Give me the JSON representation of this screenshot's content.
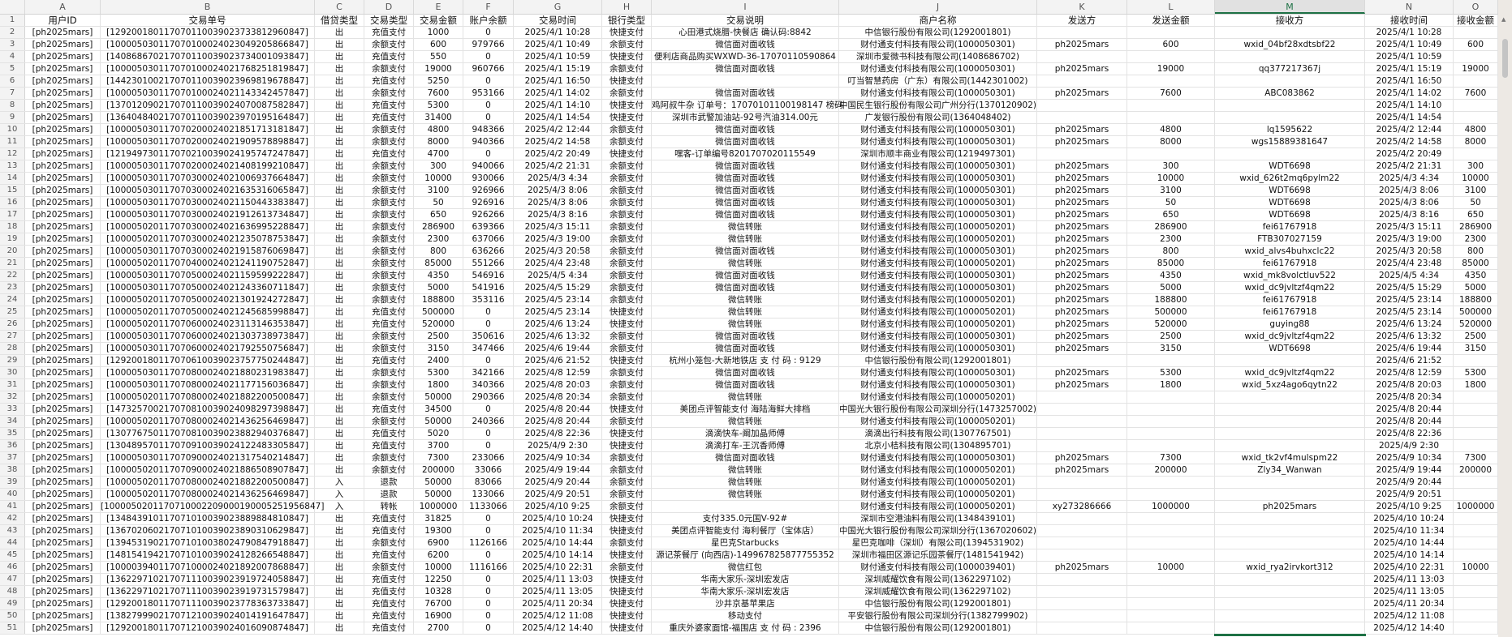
{
  "columns": [
    "",
    "A",
    "B",
    "C",
    "D",
    "E",
    "F",
    "G",
    "H",
    "I",
    "J",
    "K",
    "L",
    "M",
    "N",
    "O"
  ],
  "selected_column": "M",
  "headers": [
    "用户ID",
    "交易单号",
    "借贷类型",
    "交易类型",
    "交易金额",
    "账户余额",
    "交易时间",
    "银行类型",
    "交易说明",
    "商户名称",
    "发送方",
    "发送金额",
    "接收方",
    "接收时间",
    "接收金额"
  ],
  "rows": [
    [
      "[ph2025mars]",
      "[129200180117070110039023733812960847]",
      "出",
      "充值支付",
      "1000",
      "0",
      "2025/4/1 10:28",
      "快捷支付",
      "心田港式烧腊-快餐店 确认码:8842",
      "中信银行股份有限公司(1292001801)",
      "",
      "",
      "",
      "2025/4/1 10:28",
      ""
    ],
    [
      "[ph2025mars]",
      "[100005030117070100024023049205866847]",
      "出",
      "余额支付",
      "600",
      "979766",
      "2025/4/1 10:49",
      "余额支付",
      "微信面对面收钱",
      "财付通支付科技有限公司(1000050301)",
      "ph2025mars",
      "600",
      "wxid_04bf28xdtsbf22",
      "2025/4/1 10:49",
      "600"
    ],
    [
      "[ph2025mars]",
      "[140868670217070110039023734001093847]",
      "出",
      "充值支付",
      "550",
      "0",
      "2025/4/1 10:59",
      "快捷支付",
      "便利店商品购买WXWD-36-17070110590864",
      "深圳市爱微书科技有限公司(1408686702)",
      "",
      "",
      "",
      "2025/4/1 10:59",
      ""
    ],
    [
      "[ph2025mars]",
      "[100005030117070100024021768251819847]",
      "出",
      "余额支付",
      "19000",
      "960766",
      "2025/4/1 15:19",
      "余额支付",
      "微信面对面收钱",
      "财付通支付科技有限公司(1000050301)",
      "ph2025mars",
      "19000",
      "qq377217367j",
      "2025/4/1 15:19",
      "19000"
    ],
    [
      "[ph2025mars]",
      "[144230100217070110039023969819678847]",
      "出",
      "充值支付",
      "5250",
      "0",
      "2025/4/1 16:50",
      "快捷支付",
      "",
      "叮当智慧药房（广东）有限公司(1442301002)",
      "",
      "",
      "",
      "2025/4/1 16:50",
      ""
    ],
    [
      "[ph2025mars]",
      "[100005030117070100024021143342457847]",
      "出",
      "余额支付",
      "7600",
      "953166",
      "2025/4/1 14:02",
      "余额支付",
      "微信面对面收钱",
      "财付通支付科技有限公司(1000050301)",
      "ph2025mars",
      "7600",
      "ABC083862",
      "2025/4/1 14:02",
      "7600"
    ],
    [
      "[ph2025mars]",
      "[137012090217070110039024070087582847]",
      "出",
      "充值支付",
      "5300",
      "0",
      "2025/4/1 14:10",
      "快捷支付",
      "鸡阿叔牛杂 订单号：17070101100198147 榜码",
      "中国民生银行股份有限公司广州分行(1370120902)",
      "",
      "",
      "",
      "2025/4/1 14:10",
      ""
    ],
    [
      "[ph2025mars]",
      "[136404840217070110039023970195164847]",
      "出",
      "充值支付",
      "31400",
      "0",
      "2025/4/1 14:54",
      "快捷支付",
      "深圳市武警加油站-92号汽油314.00元",
      "广发银行股份有限公司(1364048402)",
      "",
      "",
      "",
      "2025/4/1 14:54",
      ""
    ],
    [
      "[ph2025mars]",
      "[100005030117070200024021851713181847]",
      "出",
      "余额支付",
      "4800",
      "948366",
      "2025/4/2 12:44",
      "余额支付",
      "微信面对面收钱",
      "财付通支付科技有限公司(1000050301)",
      "ph2025mars",
      "4800",
      "lq1595622",
      "2025/4/2 12:44",
      "4800"
    ],
    [
      "[ph2025mars]",
      "[100005030117070200024021909578898847]",
      "出",
      "余额支付",
      "8000",
      "940366",
      "2025/4/2 14:58",
      "余额支付",
      "微信面对面收钱",
      "财付通支付科技有限公司(1000050301)",
      "ph2025mars",
      "8000",
      "wgs15889381647",
      "2025/4/2 14:58",
      "8000"
    ],
    [
      "[ph2025mars]",
      "[121949730117070210039024195747247847]",
      "出",
      "充值支付",
      "4700",
      "0",
      "2025/4/2 20:49",
      "快捷支付",
      "嘿客-订单编号8201707020115549",
      "深圳市顺丰商业有限公司(1219497301)",
      "",
      "",
      "",
      "2025/4/2 20:49",
      ""
    ],
    [
      "[ph2025mars]",
      "[100005030117070200024021408199210847]",
      "出",
      "余额支付",
      "300",
      "940066",
      "2025/4/2 21:31",
      "余额支付",
      "微信面对面收钱",
      "财付通支付科技有限公司(1000050301)",
      "ph2025mars",
      "300",
      "WDT6698",
      "2025/4/2 21:31",
      "300"
    ],
    [
      "[ph2025mars]",
      "[100005030117070300024021006937664847]",
      "出",
      "余额支付",
      "10000",
      "930066",
      "2025/4/3 4:34",
      "余额支付",
      "微信面对面收钱",
      "财付通支付科技有限公司(1000050301)",
      "ph2025mars",
      "10000",
      "wxid_626t2mq6pylm22",
      "2025/4/3 4:34",
      "10000"
    ],
    [
      "[ph2025mars]",
      "[100005030117070300024021635316065847]",
      "出",
      "余额支付",
      "3100",
      "926966",
      "2025/4/3 8:06",
      "余额支付",
      "微信面对面收钱",
      "财付通支付科技有限公司(1000050301)",
      "ph2025mars",
      "3100",
      "WDT6698",
      "2025/4/3 8:06",
      "3100"
    ],
    [
      "[ph2025mars]",
      "[100005030117070300024021150443383847]",
      "出",
      "余额支付",
      "50",
      "926916",
      "2025/4/3 8:06",
      "余额支付",
      "微信面对面收钱",
      "财付通支付科技有限公司(1000050301)",
      "ph2025mars",
      "50",
      "WDT6698",
      "2025/4/3 8:06",
      "50"
    ],
    [
      "[ph2025mars]",
      "[100005030117070300024021912613734847]",
      "出",
      "余额支付",
      "650",
      "926266",
      "2025/4/3 8:16",
      "余额支付",
      "微信面对面收钱",
      "财付通支付科技有限公司(1000050301)",
      "ph2025mars",
      "650",
      "WDT6698",
      "2025/4/3 8:16",
      "650"
    ],
    [
      "[ph2025mars]",
      "[100005020117070300024021636995228847]",
      "出",
      "余额支付",
      "286900",
      "639366",
      "2025/4/3 15:11",
      "余额支付",
      "微信转账",
      "财付通支付科技有限公司(1000050201)",
      "ph2025mars",
      "286900",
      "fei61767918",
      "2025/4/3 15:11",
      "286900"
    ],
    [
      "[ph2025mars]",
      "[100005020117070300024021235078753847]",
      "出",
      "余额支付",
      "2300",
      "637066",
      "2025/4/3 19:00",
      "余额支付",
      "微信转账",
      "财付通支付科技有限公司(1000050201)",
      "ph2025mars",
      "2300",
      "FTB307027159",
      "2025/4/3 19:00",
      "2300"
    ],
    [
      "[ph2025mars]",
      "[100005030117070300024021915876069847]",
      "出",
      "余额支付",
      "800",
      "636266",
      "2025/4/3 20:58",
      "余额支付",
      "微信面对面收钱",
      "财付通支付科技有限公司(1000050301)",
      "ph2025mars",
      "800",
      "wxid_alvs4buhxclc22",
      "2025/4/3 20:58",
      "800"
    ],
    [
      "[ph2025mars]",
      "[100005020117070400024021241190752847]",
      "出",
      "余额支付",
      "85000",
      "551266",
      "2025/4/4 23:48",
      "余额支付",
      "微信转账",
      "财付通支付科技有限公司(1000050201)",
      "ph2025mars",
      "85000",
      "fei61767918",
      "2025/4/4 23:48",
      "85000"
    ],
    [
      "[ph2025mars]",
      "[100005030117070500024021159599222847]",
      "出",
      "余额支付",
      "4350",
      "546916",
      "2025/4/5 4:34",
      "余额支付",
      "微信面对面收钱",
      "财付通支付科技有限公司(1000050301)",
      "ph2025mars",
      "4350",
      "wxid_mk8volctluv522",
      "2025/4/5 4:34",
      "4350"
    ],
    [
      "[ph2025mars]",
      "[100005030117070500024021243360711847]",
      "出",
      "余额支付",
      "5000",
      "541916",
      "2025/4/5 15:29",
      "余额支付",
      "微信面对面收钱",
      "财付通支付科技有限公司(1000050301)",
      "ph2025mars",
      "5000",
      "wxid_dc9jvltzf4qm22",
      "2025/4/5 15:29",
      "5000"
    ],
    [
      "[ph2025mars]",
      "[100005020117070500024021301924272847]",
      "出",
      "余额支付",
      "188800",
      "353116",
      "2025/4/5 23:14",
      "余额支付",
      "微信转账",
      "财付通支付科技有限公司(1000050201)",
      "ph2025mars",
      "188800",
      "fei61767918",
      "2025/4/5 23:14",
      "188800"
    ],
    [
      "[ph2025mars]",
      "[100005020117070500024021245685998847]",
      "出",
      "充值支付",
      "500000",
      "0",
      "2025/4/5 23:14",
      "快捷支付",
      "微信转账",
      "财付通支付科技有限公司(1000050201)",
      "ph2025mars",
      "500000",
      "fei61767918",
      "2025/4/5 23:14",
      "500000"
    ],
    [
      "[ph2025mars]",
      "[100005020117070600024023113146353847]",
      "出",
      "充值支付",
      "520000",
      "0",
      "2025/4/6 13:24",
      "快捷支付",
      "微信转账",
      "财付通支付科技有限公司(1000050201)",
      "ph2025mars",
      "520000",
      "guying88",
      "2025/4/6 13:24",
      "520000"
    ],
    [
      "[ph2025mars]",
      "[100005030117070600024021303738973847]",
      "出",
      "余额支付",
      "2500",
      "350616",
      "2025/4/6 13:32",
      "余额支付",
      "微信面对面收钱",
      "财付通支付科技有限公司(1000050301)",
      "ph2025mars",
      "2500",
      "wxid_dc9jvltzf4qm22",
      "2025/4/6 13:32",
      "2500"
    ],
    [
      "[ph2025mars]",
      "[100005030117070600024021792550756847]",
      "出",
      "余额支付",
      "3150",
      "347466",
      "2025/4/6 19:44",
      "余额支付",
      "微信面对面收钱",
      "财付通支付科技有限公司(1000050301)",
      "ph2025mars",
      "3150",
      "WDT6698",
      "2025/4/6 19:44",
      "3150"
    ],
    [
      "[ph2025mars]",
      "[129200180117070610039023757750244847]",
      "出",
      "充值支付",
      "2400",
      "0",
      "2025/4/6 21:52",
      "快捷支付",
      "杭州小笼包-大新地铁店 支 付 码 : 9129",
      "中信银行股份有限公司(1292001801)",
      "",
      "",
      "",
      "2025/4/6 21:52",
      ""
    ],
    [
      "[ph2025mars]",
      "[100005030117070800024021880231983847]",
      "出",
      "余额支付",
      "5300",
      "342166",
      "2025/4/8 12:59",
      "余额支付",
      "微信面对面收钱",
      "财付通支付科技有限公司(1000050301)",
      "ph2025mars",
      "5300",
      "wxid_dc9jvltzf4qm22",
      "2025/4/8 12:59",
      "5300"
    ],
    [
      "[ph2025mars]",
      "[100005030117070800024021177156036847]",
      "出",
      "余额支付",
      "1800",
      "340366",
      "2025/4/8 20:03",
      "余额支付",
      "微信面对面收钱",
      "财付通支付科技有限公司(1000050301)",
      "ph2025mars",
      "1800",
      "wxid_5xz4ago6qytn22",
      "2025/4/8 20:03",
      "1800"
    ],
    [
      "[ph2025mars]",
      "[100005020117070800024021882200500847]",
      "出",
      "余额支付",
      "50000",
      "290366",
      "2025/4/8 20:34",
      "余额支付",
      "微信转账",
      "财付通支付科技有限公司(1000050201)",
      "",
      "",
      "",
      "2025/4/8 20:34",
      ""
    ],
    [
      "[ph2025mars]",
      "[147325700217070810039024098297398847]",
      "出",
      "充值支付",
      "34500",
      "0",
      "2025/4/8 20:44",
      "快捷支付",
      "美团点评智能支付 海陆海鲜大排档",
      "中国光大银行股份有限公司深圳分行(1473257002)",
      "",
      "",
      "",
      "2025/4/8 20:44",
      ""
    ],
    [
      "[ph2025mars]",
      "[100005020117070800024021436256469847]",
      "出",
      "余额支付",
      "50000",
      "240366",
      "2025/4/8 20:44",
      "余额支付",
      "微信转账",
      "财付通支付科技有限公司(1000050201)",
      "",
      "",
      "",
      "2025/4/8 20:44",
      ""
    ],
    [
      "[ph2025mars]",
      "[130776750117070810039023882940376847]",
      "出",
      "充值支付",
      "5020",
      "0",
      "2025/4/8 22:36",
      "快捷支付",
      "滴滴快车-阚加晶师傅",
      "滴滴出行科技有限公司(1307767501)",
      "",
      "",
      "",
      "2025/4/8 22:36",
      ""
    ],
    [
      "[ph2025mars]",
      "[130489570117070910039024122483305847]",
      "出",
      "充值支付",
      "3700",
      "0",
      "2025/4/9 2:30",
      "快捷支付",
      "滴滴打车-王沉香师傅",
      "北京小桔科技有限公司(1304895701)",
      "",
      "",
      "",
      "2025/4/9 2:30",
      ""
    ],
    [
      "[ph2025mars]",
      "[100005030117070900024021317540214847]",
      "出",
      "余额支付",
      "7300",
      "233066",
      "2025/4/9 10:34",
      "余额支付",
      "微信面对面收钱",
      "财付通支付科技有限公司(1000050301)",
      "ph2025mars",
      "7300",
      "wxid_tk2vf4mulspm22",
      "2025/4/9 10:34",
      "7300"
    ],
    [
      "[ph2025mars]",
      "[100005020117070900024021886508907847]",
      "出",
      "余额支付",
      "200000",
      "33066",
      "2025/4/9 19:44",
      "余额支付",
      "微信转账",
      "财付通支付科技有限公司(1000050201)",
      "ph2025mars",
      "200000",
      "Zly34_Wanwan",
      "2025/4/9 19:44",
      "200000"
    ],
    [
      "[ph2025mars]",
      "[100005020117070800024021882200500847]",
      "入",
      "退款",
      "50000",
      "83066",
      "2025/4/9 20:44",
      "余额支付",
      "微信转账",
      "财付通支付科技有限公司(1000050201)",
      "",
      "",
      "",
      "2025/4/9 20:44",
      ""
    ],
    [
      "[ph2025mars]",
      "[100005020117070800024021436256469847]",
      "入",
      "退款",
      "50000",
      "133066",
      "2025/4/9 20:51",
      "余额支付",
      "微信转账",
      "财付通支付科技有限公司(1000050201)",
      "",
      "",
      "",
      "2025/4/9 20:51",
      ""
    ],
    [
      "[ph2025mars]",
      "[1000050201170710002209000190005251956847]",
      "入",
      "转帐",
      "1000000",
      "1133066",
      "2025/4/10 9:25",
      "余额支付",
      "",
      "财付通支付科技有限公司(1000050201)",
      "xy273286666",
      "1000000",
      "ph2025mars",
      "2025/4/10 9:25",
      "1000000"
    ],
    [
      "[ph2025mars]",
      "[134843910117071010039023889884810847]",
      "出",
      "充值支付",
      "31825",
      "0",
      "2025/4/10 10:24",
      "快捷支付",
      "支付335.0元国V-92#",
      "深圳市空港油料有限公司(1348439101)",
      "",
      "",
      "",
      "2025/4/10 10:24",
      ""
    ],
    [
      "[ph2025mars]",
      "[136702060217071010039023890310629847]",
      "出",
      "充值支付",
      "19300",
      "0",
      "2025/4/10 11:34",
      "快捷支付",
      "美团点评智能支付 海利餐厅（宝体店）",
      "中国光大银行股份有限公司深圳分行(1367020602)",
      "",
      "",
      "",
      "2025/4/10 11:34",
      ""
    ],
    [
      "[ph2025mars]",
      "[139453190217071010038024790847918847]",
      "出",
      "余额支付",
      "6900",
      "1126166",
      "2025/4/10 14:44",
      "余额支付",
      "星巴克Starbucks",
      "星巴克咖啡（深圳）有限公司(1394531902)",
      "",
      "",
      "",
      "2025/4/10 14:44",
      ""
    ],
    [
      "[ph2025mars]",
      "[148154194217071010039024128266548847]",
      "出",
      "充值支付",
      "6200",
      "0",
      "2025/4/10 14:14",
      "快捷支付",
      "源记茶餐厅 (向西店)-149967825877755352",
      "深圳市福田区源记乐园茶餐厅(1481541942)",
      "",
      "",
      "",
      "2025/4/10 14:14",
      ""
    ],
    [
      "[ph2025mars]",
      "[100003940117071000024021892007868847]",
      "出",
      "余额支付",
      "10000",
      "1116166",
      "2025/4/10 22:31",
      "余额支付",
      "微信红包",
      "财付通支付科技有限公司(1000039401)",
      "ph2025mars",
      "10000",
      "wxid_rya2irvkort312",
      "2025/4/10 22:31",
      "10000"
    ],
    [
      "[ph2025mars]",
      "[136229710217071110039023919724058847]",
      "出",
      "充值支付",
      "12250",
      "0",
      "2025/4/11 13:03",
      "快捷支付",
      "华南大家乐-深圳宏发店",
      "深圳威耀饮食有限公司(1362297102)",
      "",
      "",
      "",
      "2025/4/11 13:03",
      ""
    ],
    [
      "[ph2025mars]",
      "[136229710217071110039023919731579847]",
      "出",
      "充值支付",
      "10328",
      "0",
      "2025/4/11 13:05",
      "快捷支付",
      "华南大家乐-深圳宏发店",
      "深圳威耀饮食有限公司(1362297102)",
      "",
      "",
      "",
      "2025/4/11 13:05",
      ""
    ],
    [
      "[ph2025mars]",
      "[129200180117071110039023778363733847]",
      "出",
      "充值支付",
      "76700",
      "0",
      "2025/4/11 20:34",
      "快捷支付",
      "沙井京基苹果店",
      "中信银行股份有限公司(1292001801)",
      "",
      "",
      "",
      "2025/4/11 20:34",
      ""
    ],
    [
      "[ph2025mars]",
      "[138279990217071210039024014191647847]",
      "出",
      "充值支付",
      "16900",
      "0",
      "2025/4/12 11:08",
      "快捷支付",
      "移动支付",
      "平安银行股份有限公司深圳分行(1382799902)",
      "",
      "",
      "",
      "2025/4/12 11:08",
      ""
    ],
    [
      "[ph2025mars]",
      "[129200180117071210039024016090874847]",
      "出",
      "充值支付",
      "2700",
      "0",
      "2025/4/12 14:40",
      "快捷支付",
      "重庆外婆家面馆-福围店 支 付 码 : 2396",
      "中信银行股份有限公司(1292001801)",
      "",
      "",
      "",
      "2025/4/12 14:40",
      ""
    ]
  ],
  "colors": {
    "accent": "#1e7145",
    "grid": "#e3e3e3",
    "header_bg": "#f3f3f3"
  }
}
